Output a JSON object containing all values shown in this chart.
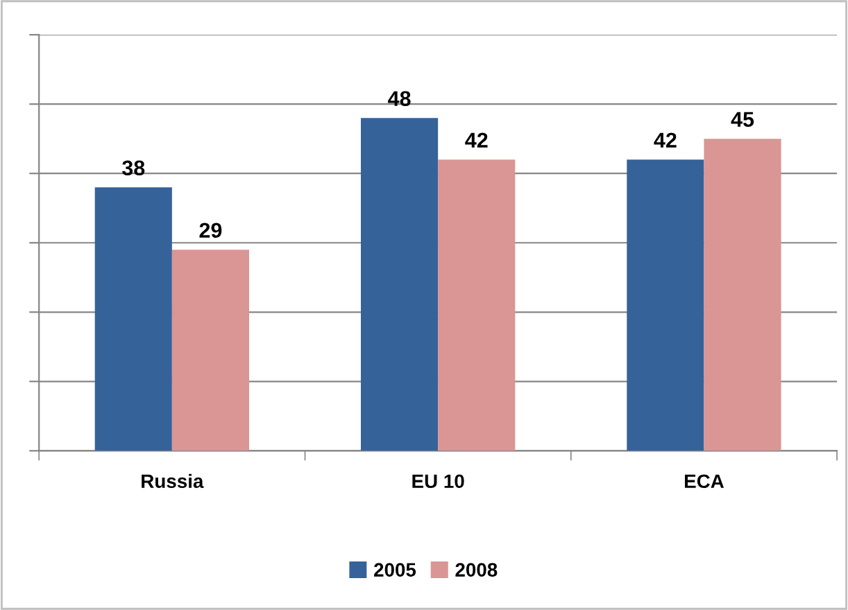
{
  "chart_data": {
    "type": "bar",
    "categories": [
      "Russia",
      "EU 10",
      "ECA"
    ],
    "series": [
      {
        "name": "2005",
        "color": "#36629a",
        "values": [
          38,
          48,
          42
        ]
      },
      {
        "name": "2008",
        "color": "#d99694",
        "values": [
          29,
          42,
          45
        ]
      }
    ],
    "ylim": [
      0,
      60
    ],
    "yticks": [
      {
        "value": 0,
        "label": null
      },
      {
        "value": 10,
        "label": null
      },
      {
        "value": 20,
        "label": null
      },
      {
        "value": 30,
        "label": null
      },
      {
        "value": 40,
        "label": null
      },
      {
        "value": 50,
        "label": null
      },
      {
        "value": 60,
        "label": null
      }
    ],
    "grid": "y",
    "legend": "bottom",
    "data_labels": true
  }
}
